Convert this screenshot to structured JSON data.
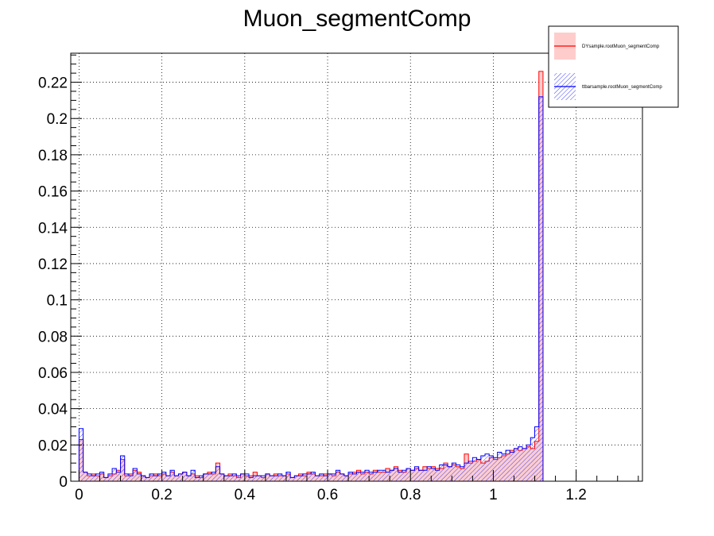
{
  "chart_data": {
    "type": "histogram",
    "title": "Muon_segmentComp",
    "xlabel": "",
    "ylabel": "",
    "xlim": [
      -0.02,
      1.36
    ],
    "ylim": [
      0,
      0.236
    ],
    "grid": true,
    "legend_position": "top-right",
    "x_ticks": [
      0,
      0.2,
      0.4,
      0.6,
      0.8,
      1,
      1.2
    ],
    "x_tick_labels": [
      "0",
      "0.2",
      "0.4",
      "0.6",
      "0.8",
      "1",
      "1.2"
    ],
    "y_ticks": [
      0,
      0.02,
      0.04,
      0.06,
      0.08,
      0.1,
      0.12,
      0.14,
      0.16,
      0.18,
      0.2,
      0.22
    ],
    "y_tick_labels": [
      "0",
      "0.02",
      "0.04",
      "0.06",
      "0.08",
      "0.1",
      "0.12",
      "0.14",
      "0.16",
      "0.18",
      "0.2",
      "0.22"
    ],
    "bin_width": 0.01,
    "bins_start": -0.01,
    "series": [
      {
        "name": "DYsample.rootMuon_segmentComp",
        "color": "#ff0000",
        "fill": "#ffcccc",
        "fill_style": "solid",
        "values": [
          0.0,
          0.023,
          0.005,
          0.003,
          0.004,
          0.003,
          0.004,
          0.002,
          0.003,
          0.004,
          0.006,
          0.012,
          0.003,
          0.004,
          0.006,
          0.005,
          0.003,
          0.002,
          0.003,
          0.004,
          0.003,
          0.004,
          0.003,
          0.005,
          0.003,
          0.004,
          0.005,
          0.003,
          0.004,
          0.003,
          0.002,
          0.004,
          0.005,
          0.004,
          0.01,
          0.004,
          0.003,
          0.004,
          0.003,
          0.002,
          0.004,
          0.003,
          0.003,
          0.005,
          0.003,
          0.002,
          0.004,
          0.003,
          0.004,
          0.003,
          0.003,
          0.004,
          0.002,
          0.003,
          0.004,
          0.003,
          0.005,
          0.004,
          0.003,
          0.003,
          0.004,
          0.004,
          0.003,
          0.005,
          0.004,
          0.003,
          0.004,
          0.005,
          0.006,
          0.004,
          0.005,
          0.004,
          0.006,
          0.005,
          0.005,
          0.007,
          0.006,
          0.008,
          0.006,
          0.005,
          0.007,
          0.006,
          0.007,
          0.006,
          0.008,
          0.007,
          0.008,
          0.007,
          0.007,
          0.01,
          0.008,
          0.009,
          0.008,
          0.007,
          0.015,
          0.01,
          0.011,
          0.012,
          0.01,
          0.011,
          0.013,
          0.012,
          0.013,
          0.014,
          0.015,
          0.017,
          0.018,
          0.017,
          0.018,
          0.019,
          0.018,
          0.022,
          0.226
        ],
        "values_after_one": 0.0
      },
      {
        "name": "ttbarsample.rootMuon_segmentComp",
        "color": "#0000ff",
        "fill": "#8080ff",
        "fill_style": "hatched",
        "values": [
          0.0,
          0.029,
          0.005,
          0.004,
          0.003,
          0.004,
          0.005,
          0.002,
          0.004,
          0.007,
          0.005,
          0.014,
          0.004,
          0.003,
          0.007,
          0.004,
          0.003,
          0.002,
          0.004,
          0.003,
          0.004,
          0.005,
          0.003,
          0.006,
          0.003,
          0.004,
          0.005,
          0.003,
          0.006,
          0.002,
          0.003,
          0.004,
          0.004,
          0.005,
          0.008,
          0.004,
          0.003,
          0.003,
          0.004,
          0.003,
          0.004,
          0.004,
          0.002,
          0.003,
          0.003,
          0.003,
          0.004,
          0.003,
          0.003,
          0.004,
          0.003,
          0.005,
          0.002,
          0.003,
          0.003,
          0.004,
          0.004,
          0.005,
          0.003,
          0.004,
          0.003,
          0.004,
          0.004,
          0.006,
          0.004,
          0.003,
          0.005,
          0.004,
          0.005,
          0.005,
          0.006,
          0.005,
          0.005,
          0.006,
          0.006,
          0.005,
          0.006,
          0.007,
          0.005,
          0.006,
          0.007,
          0.006,
          0.008,
          0.006,
          0.006,
          0.008,
          0.007,
          0.006,
          0.009,
          0.009,
          0.008,
          0.01,
          0.009,
          0.008,
          0.01,
          0.011,
          0.013,
          0.012,
          0.014,
          0.015,
          0.014,
          0.013,
          0.016,
          0.015,
          0.017,
          0.016,
          0.018,
          0.019,
          0.018,
          0.02,
          0.024,
          0.03,
          0.212
        ],
        "values_after_one": 0.0
      }
    ]
  }
}
